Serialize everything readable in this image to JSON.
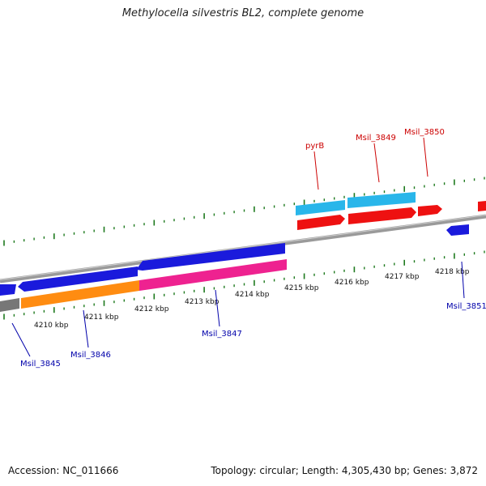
{
  "title": "Methylocella silvestris BL2, complete genome",
  "footer": {
    "accession": "Accession: NC_011666",
    "summary": "Topology: circular; Length: 4,305,430 bp; Genes: 3,872"
  },
  "scale_labels": [
    "4210 kbp",
    "4211 kbp",
    "4212 kbp",
    "4213 kbp",
    "4214 kbp",
    "4215 kbp",
    "4216 kbp",
    "4217 kbp",
    "4218 kbp"
  ],
  "gene_labels": {
    "forward": [
      "pyrB",
      "Msil_3849",
      "Msil_3850"
    ],
    "reverse": [
      "Msil_3845",
      "Msil_3846",
      "Msil_3847",
      "Msil_3851"
    ]
  },
  "colors": {
    "forward_label": "#cc0000",
    "reverse_label": "#0000aa",
    "blue_gene": "#1a1adc",
    "cyan_gene": "#29b6ea",
    "red_gene": "#ee1111",
    "orange_gene": "#ff8c11",
    "pink_gene": "#ee2290",
    "gray_gene": "#777777",
    "tick": "#1e7a1e",
    "backbone": "#888888"
  }
}
